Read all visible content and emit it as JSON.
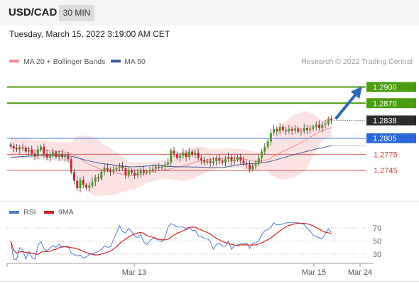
{
  "header": {
    "pair": "USD/CAD",
    "timeframe": "30 MIN"
  },
  "timestamp": "Tuesday, March 15, 2022 3:19:00 AM CET",
  "legend": {
    "ma": "MA 20 + Bollinger Bands",
    "ma50": "MA 50",
    "copyright": "Research © 2022 Trading Central",
    "rsi": "RSI",
    "rsi_ma": "9MA"
  },
  "colors": {
    "green": "#4a9d0e",
    "blue": "#2a67d8",
    "red": "#d33a3a",
    "up": "#4c9a24",
    "down": "#c7282c",
    "band": "#fbd9d9",
    "ma20": "#ef8a8a",
    "ma50": "#3d5a98",
    "rsi": "#4f7ad6",
    "rsi_ma": "#d92020",
    "arrow": "#2f68b3",
    "current": "#2d2d2d"
  },
  "chart_data": [
    {
      "type": "candlestick",
      "title": "USD/CAD",
      "timeframe": "30 MIN",
      "x_tick_labels": [
        "Mar 13",
        "Mar 15",
        "Mar 24"
      ],
      "ylim": [
        1.2695,
        1.2935
      ],
      "levels": [
        {
          "value": 1.29,
          "label": "1.2900",
          "kind": "resistance"
        },
        {
          "value": 1.287,
          "label": "1.2870",
          "kind": "resistance"
        },
        {
          "value": 1.2805,
          "label": "1.2805",
          "kind": "pivot"
        },
        {
          "value": 1.2775,
          "label": "1.2775",
          "kind": "support"
        },
        {
          "value": 1.2745,
          "label": "1.2745",
          "kind": "support"
        }
      ],
      "current_price": {
        "value": 1.2838,
        "label": "1.2838"
      },
      "legend": [
        "MA 20 + Bollinger Bands",
        "MA 50"
      ],
      "close": [
        1.279,
        1.2786,
        1.2784,
        1.2788,
        1.2787,
        1.278,
        1.2783,
        1.2776,
        1.2772,
        1.2784,
        1.2789,
        1.2776,
        1.2769,
        1.2774,
        1.2779,
        1.277,
        1.2776,
        1.277,
        1.2772,
        1.2766,
        1.2742,
        1.2726,
        1.2712,
        1.2727,
        1.2718,
        1.2713,
        1.2717,
        1.2724,
        1.2732,
        1.273,
        1.2743,
        1.275,
        1.2746,
        1.2743,
        1.2747,
        1.275,
        1.2753,
        1.2749,
        1.2737,
        1.2745,
        1.2741,
        1.2736,
        1.274,
        1.2746,
        1.2741,
        1.2743,
        1.2746,
        1.2748,
        1.2752,
        1.275,
        1.2752,
        1.2756,
        1.276,
        1.2782,
        1.2776,
        1.2768,
        1.2772,
        1.2778,
        1.277,
        1.278,
        1.2774,
        1.2778,
        1.2768,
        1.2764,
        1.276,
        1.2763,
        1.2759,
        1.2762,
        1.2768,
        1.2763,
        1.276,
        1.2766,
        1.277,
        1.2762,
        1.2765,
        1.277,
        1.2763,
        1.2758,
        1.2756,
        1.2747,
        1.2754,
        1.2758,
        1.2768,
        1.278,
        1.2789,
        1.2799,
        1.2815,
        1.2822,
        1.2818,
        1.2826,
        1.282,
        1.2818,
        1.2822,
        1.2819,
        1.2823,
        1.2817,
        1.2818,
        1.2824,
        1.282,
        1.2822,
        1.2826,
        1.283,
        1.2824,
        1.283,
        1.2832,
        1.2841,
        1.2838
      ]
    },
    {
      "type": "line",
      "title": "RSI",
      "series": [
        {
          "name": "RSI"
        },
        {
          "name": "9MA"
        }
      ],
      "y_ticks": [
        70,
        50,
        30
      ],
      "ylim": [
        20,
        80
      ]
    }
  ]
}
